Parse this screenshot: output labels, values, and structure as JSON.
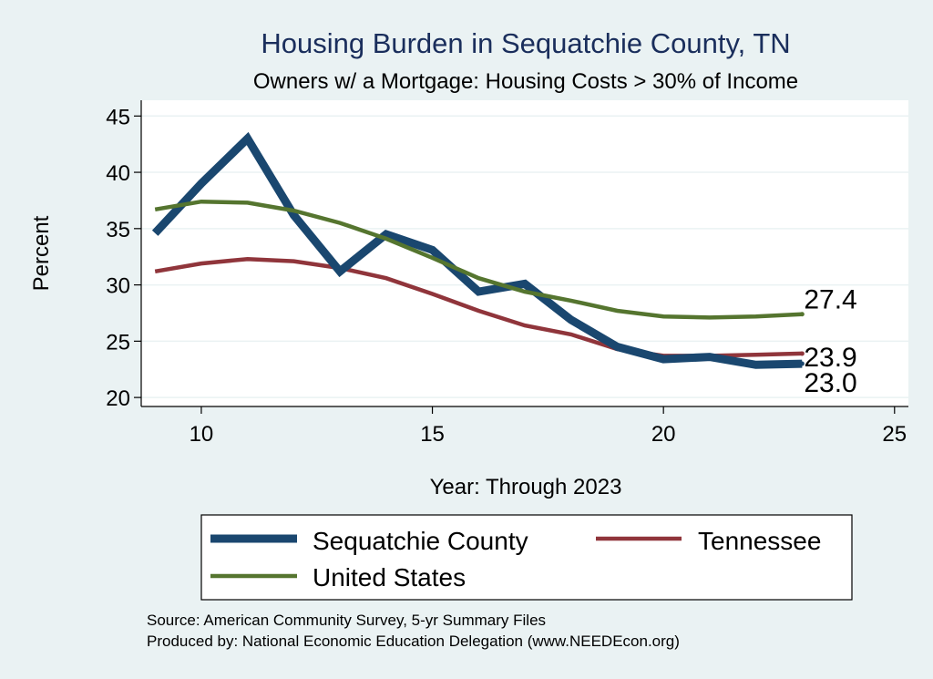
{
  "chart_data": {
    "type": "line",
    "title": "Housing Burden in Sequatchie County, TN",
    "subtitle": "Owners w/ a Mortgage: Housing Costs > 30% of Income",
    "xlabel": "Year: Through 2023",
    "ylabel": "Percent",
    "xlim": [
      8.7,
      25.3
    ],
    "ylim": [
      19.2,
      46.4
    ],
    "xticks": [
      10,
      15,
      20,
      25
    ],
    "yticks": [
      20,
      25,
      30,
      35,
      40,
      45
    ],
    "grid": true,
    "legend_position": "bottom",
    "x": [
      9,
      10,
      11,
      12,
      13,
      14,
      15,
      16,
      17,
      18,
      19,
      20,
      21,
      22,
      23
    ],
    "series": [
      {
        "name": "Sequatchie County",
        "color": "#1a476f",
        "values": [
          34.6,
          39.0,
          43.0,
          36.2,
          31.2,
          34.5,
          33.1,
          29.4,
          30.1,
          26.9,
          24.5,
          23.4,
          23.6,
          22.9,
          23.0
        ],
        "end_label": "23.0"
      },
      {
        "name": "Tennessee",
        "color": "#90353b",
        "values": [
          31.2,
          31.9,
          32.3,
          32.1,
          31.5,
          30.6,
          29.2,
          27.7,
          26.4,
          25.6,
          24.3,
          23.7,
          23.7,
          23.8,
          23.9
        ],
        "end_label": "23.9"
      },
      {
        "name": "United States",
        "color": "#55752f",
        "values": [
          36.7,
          37.4,
          37.3,
          36.6,
          35.5,
          34.1,
          32.4,
          30.6,
          29.4,
          28.6,
          27.7,
          27.2,
          27.1,
          27.2,
          27.4
        ],
        "end_label": "27.4"
      }
    ]
  },
  "notes": {
    "source": "Source: American Community Survey, 5-yr Summary Files",
    "produced_by": "Produced by: National Economic Education Delegation (www.NEEDEcon.org)"
  }
}
